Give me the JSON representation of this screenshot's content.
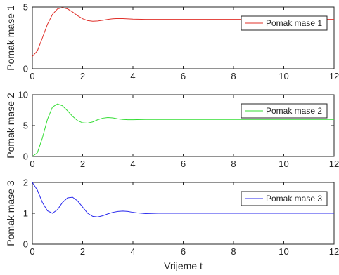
{
  "chart_data": [
    {
      "type": "line",
      "ylabel": "Pomak mase 1",
      "xlim": [
        0,
        12
      ],
      "ylim": [
        0,
        5
      ],
      "xticks": [
        0,
        2,
        4,
        6,
        8,
        10,
        12
      ],
      "yticks": [
        0,
        5
      ],
      "grid": false,
      "legend_position": "top-right",
      "series": [
        {
          "name": "Pomak mase 1",
          "color": "#e0302a",
          "x": [
            0,
            0.2,
            0.4,
            0.6,
            0.8,
            1.0,
            1.2,
            1.4,
            1.6,
            1.8,
            2.0,
            2.2,
            2.4,
            2.6,
            2.8,
            3.0,
            3.2,
            3.4,
            3.6,
            3.8,
            4.0,
            4.5,
            5.0,
            6.0,
            7.0,
            8.0,
            9.0,
            10.0,
            11.0,
            12.0
          ],
          "y": [
            1.0,
            1.45,
            2.5,
            3.6,
            4.4,
            4.85,
            4.95,
            4.85,
            4.6,
            4.3,
            4.05,
            3.9,
            3.85,
            3.87,
            3.93,
            4.0,
            4.05,
            4.07,
            4.06,
            4.04,
            4.02,
            4.0,
            4.0,
            4.0,
            4.0,
            4.0,
            4.0,
            4.0,
            4.0,
            4.0
          ]
        }
      ]
    },
    {
      "type": "line",
      "ylabel": "Pomak mase 2",
      "xlim": [
        0,
        12
      ],
      "ylim": [
        0,
        10
      ],
      "xticks": [
        0,
        2,
        4,
        6,
        8,
        10,
        12
      ],
      "yticks": [
        0,
        5,
        10
      ],
      "grid": false,
      "legend_position": "top-right",
      "series": [
        {
          "name": "Pomak mase 2",
          "color": "#33dd33",
          "x": [
            0,
            0.2,
            0.4,
            0.6,
            0.8,
            1.0,
            1.2,
            1.4,
            1.6,
            1.8,
            2.0,
            2.2,
            2.4,
            2.6,
            2.8,
            3.0,
            3.2,
            3.4,
            3.6,
            3.8,
            4.0,
            4.5,
            5.0,
            6.0,
            7.0,
            8.0,
            9.0,
            10.0,
            11.0,
            12.0
          ],
          "y": [
            0.0,
            0.6,
            3.0,
            6.0,
            8.0,
            8.5,
            8.2,
            7.4,
            6.5,
            5.8,
            5.45,
            5.4,
            5.6,
            5.95,
            6.2,
            6.3,
            6.25,
            6.1,
            6.0,
            5.95,
            5.95,
            6.0,
            6.0,
            6.0,
            6.0,
            6.0,
            6.0,
            6.0,
            6.0,
            6.0
          ]
        }
      ]
    },
    {
      "type": "line",
      "xlabel": "Vrijeme t",
      "ylabel": "Pomak mase 3",
      "xlim": [
        0,
        12
      ],
      "ylim": [
        0,
        2
      ],
      "xticks": [
        0,
        2,
        4,
        6,
        8,
        10,
        12
      ],
      "yticks": [
        0,
        1,
        2
      ],
      "grid": false,
      "legend_position": "top-right",
      "series": [
        {
          "name": "Pomak mase 3",
          "color": "#2a2aee",
          "x": [
            0,
            0.2,
            0.4,
            0.6,
            0.8,
            1.0,
            1.2,
            1.4,
            1.6,
            1.8,
            2.0,
            2.2,
            2.4,
            2.6,
            2.8,
            3.0,
            3.2,
            3.4,
            3.6,
            3.8,
            4.0,
            4.2,
            4.5,
            5.0,
            6.0,
            7.0,
            8.0,
            9.0,
            10.0,
            11.0,
            12.0
          ],
          "y": [
            2.0,
            1.75,
            1.35,
            1.08,
            1.0,
            1.12,
            1.35,
            1.5,
            1.52,
            1.4,
            1.2,
            1.0,
            0.9,
            0.88,
            0.92,
            0.98,
            1.03,
            1.06,
            1.07,
            1.06,
            1.03,
            1.01,
            0.99,
            1.0,
            1.0,
            1.0,
            1.0,
            1.0,
            1.0,
            1.0,
            1.0
          ]
        }
      ]
    }
  ]
}
